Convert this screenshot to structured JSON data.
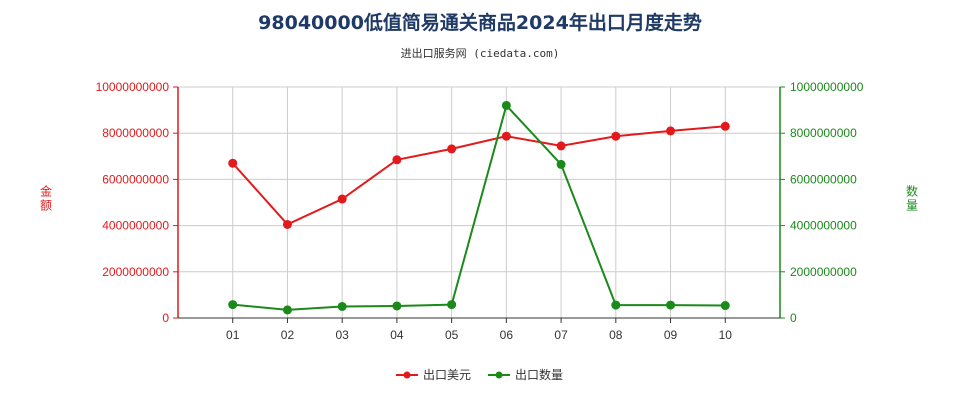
{
  "title": "98040000低值简易通关商品2024年出口月度走势",
  "subtitle": "进出口服务网 (ciedata.com)",
  "colors": {
    "left_axis": "#e31a1c",
    "right_axis": "#1a8a1a",
    "grid": "#cccccc",
    "title": "#1f3a66"
  },
  "chart_data": {
    "type": "line",
    "categories": [
      "01",
      "02",
      "03",
      "04",
      "05",
      "06",
      "07",
      "08",
      "09",
      "10"
    ],
    "y_left": {
      "label": "金额",
      "range": [
        0,
        10000000000
      ],
      "ticks": [
        "0",
        "2000000000",
        "4000000000",
        "6000000000",
        "8000000000",
        "10000000000"
      ]
    },
    "y_right": {
      "label": "数量",
      "range": [
        0,
        10000000000
      ],
      "ticks": [
        "0",
        "2000000000",
        "4000000000",
        "6000000000",
        "8000000000",
        "10000000000"
      ]
    },
    "grid": true,
    "legend_position": "bottom-center",
    "series": [
      {
        "name": "出口美元",
        "axis": "left",
        "color": "#e31a1c",
        "values": [
          6700000000,
          4050000000,
          5150000000,
          6850000000,
          7320000000,
          7870000000,
          7450000000,
          7870000000,
          8100000000,
          8300000000
        ]
      },
      {
        "name": "出口数量",
        "axis": "right",
        "color": "#1a8a1a",
        "values": [
          580000000,
          350000000,
          500000000,
          520000000,
          580000000,
          9200000000,
          6650000000,
          560000000,
          560000000,
          540000000
        ]
      }
    ]
  }
}
